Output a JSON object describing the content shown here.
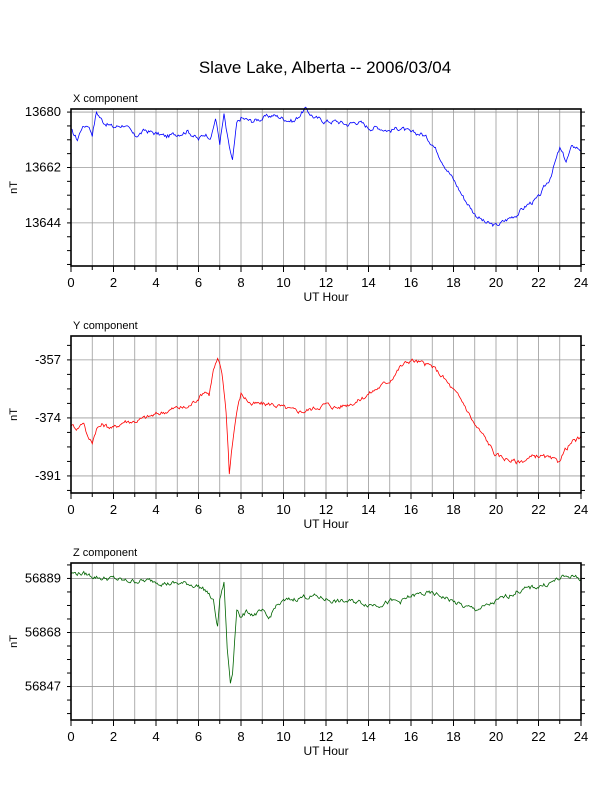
{
  "title": "Slave Lake, Alberta -- 2006/03/04",
  "chart_data": [
    {
      "type": "line",
      "panel_label": "X component",
      "xlabel": "UT Hour",
      "ylabel": "nT",
      "xlim": [
        0,
        24
      ],
      "ylim": [
        13630,
        13681
      ],
      "x_ticks": [
        0,
        2,
        4,
        6,
        8,
        10,
        12,
        14,
        16,
        18,
        20,
        22,
        24
      ],
      "y_ticks": [
        13644,
        13662,
        13680
      ],
      "grid": true,
      "color": "#0000ff",
      "x": [
        0,
        0.3,
        0.5,
        0.8,
        1.0,
        1.2,
        1.5,
        2.0,
        2.5,
        3.0,
        3.5,
        4.0,
        4.5,
        5.0,
        5.5,
        6.0,
        6.3,
        6.6,
        6.8,
        7.0,
        7.2,
        7.4,
        7.6,
        7.8,
        8.0,
        8.5,
        9.0,
        9.5,
        10.0,
        10.5,
        11.0,
        11.5,
        12.0,
        12.5,
        13.0,
        13.5,
        14.0,
        14.5,
        15.0,
        15.5,
        16.0,
        16.5,
        17.0,
        17.5,
        18.0,
        18.5,
        19.0,
        19.5,
        20.0,
        20.5,
        21.0,
        21.5,
        22.0,
        22.5,
        23.0,
        23.3,
        23.6,
        24.0
      ],
      "y": [
        13674,
        13671,
        13675,
        13676,
        13673,
        13680,
        13677,
        13675,
        13676,
        13672,
        13674,
        13673,
        13672,
        13673,
        13674,
        13671,
        13673,
        13672,
        13678,
        13670,
        13679,
        13670,
        13664,
        13676,
        13678,
        13677,
        13678,
        13679,
        13678,
        13677,
        13681,
        13678,
        13677,
        13677,
        13676,
        13677,
        13675,
        13675,
        13674,
        13675,
        13673,
        13673,
        13670,
        13664,
        13658,
        13652,
        13647,
        13644,
        13643,
        13645,
        13647,
        13650,
        13652,
        13658,
        13668,
        13664,
        13669,
        13668
      ]
    },
    {
      "type": "line",
      "panel_label": "Y component",
      "xlabel": "UT Hour",
      "ylabel": "nT",
      "xlim": [
        0,
        24
      ],
      "ylim": [
        -396,
        -350
      ],
      "x_ticks": [
        0,
        2,
        4,
        6,
        8,
        10,
        12,
        14,
        16,
        18,
        20,
        22,
        24
      ],
      "y_ticks": [
        -391,
        -374,
        -357
      ],
      "grid": true,
      "color": "#ff0000",
      "x": [
        0,
        0.3,
        0.6,
        0.8,
        1.0,
        1.2,
        1.5,
        2.0,
        2.5,
        3.0,
        3.5,
        4.0,
        4.5,
        5.0,
        5.5,
        6.0,
        6.3,
        6.5,
        6.7,
        6.9,
        7.1,
        7.3,
        7.45,
        7.6,
        7.8,
        8.0,
        8.5,
        9.0,
        9.5,
        10.0,
        10.5,
        11.0,
        11.5,
        12.0,
        12.5,
        13.0,
        13.5,
        14.0,
        14.5,
        15.0,
        15.5,
        16.0,
        16.5,
        17.0,
        17.5,
        18.0,
        18.5,
        19.0,
        19.5,
        20.0,
        20.5,
        21.0,
        21.5,
        22.0,
        22.5,
        22.9,
        23.3,
        23.6,
        24.0
      ],
      "y": [
        -376,
        -377,
        -375,
        -380,
        -381,
        -377,
        -376,
        -377,
        -375,
        -375,
        -374,
        -373,
        -372,
        -371,
        -371,
        -368,
        -366,
        -367,
        -360,
        -357,
        -361,
        -372,
        -390,
        -381,
        -372,
        -367,
        -370,
        -370,
        -370,
        -371,
        -372,
        -372,
        -371,
        -370,
        -371,
        -370,
        -369,
        -367,
        -365,
        -363,
        -359,
        -357,
        -358,
        -359,
        -362,
        -366,
        -370,
        -376,
        -380,
        -385,
        -386,
        -387,
        -386,
        -385,
        -386,
        -387,
        -383,
        -381,
        -380
      ]
    },
    {
      "type": "line",
      "panel_label": "Z component",
      "xlabel": "UT Hour",
      "ylabel": "nT",
      "xlim": [
        0,
        24
      ],
      "ylim": [
        56834,
        56895
      ],
      "x_ticks": [
        0,
        2,
        4,
        6,
        8,
        10,
        12,
        14,
        16,
        18,
        20,
        22,
        24
      ],
      "y_ticks": [
        56847,
        56868,
        56889
      ],
      "grid": true,
      "color": "#006400",
      "x": [
        0,
        0.5,
        1.0,
        1.5,
        2.0,
        2.5,
        3.0,
        3.5,
        4.0,
        4.5,
        5.0,
        5.5,
        6.0,
        6.4,
        6.7,
        6.9,
        7.0,
        7.2,
        7.35,
        7.5,
        7.6,
        7.8,
        8.0,
        8.3,
        8.6,
        9.0,
        9.3,
        9.6,
        10.0,
        10.5,
        11.0,
        11.5,
        12.0,
        12.5,
        13.0,
        13.5,
        14.0,
        14.5,
        15.0,
        15.5,
        16.0,
        16.5,
        17.0,
        17.5,
        18.0,
        18.5,
        19.0,
        19.5,
        20.0,
        20.5,
        21.0,
        21.5,
        22.0,
        22.5,
        23.0,
        23.5,
        24.0
      ],
      "y": [
        56891,
        56891,
        56890,
        56889,
        56889,
        56888,
        56888,
        56888,
        56888,
        56887,
        56887,
        56887,
        56886,
        56884,
        56880,
        56870,
        56881,
        56887,
        56862,
        56848,
        56852,
        56878,
        56874,
        56876,
        56875,
        56876,
        56873,
        56878,
        56880,
        56881,
        56882,
        56882,
        56881,
        56880,
        56880,
        56880,
        56879,
        56879,
        56880,
        56880,
        56882,
        56883,
        56883,
        56882,
        56880,
        56878,
        56877,
        56878,
        56880,
        56882,
        56884,
        56885,
        56886,
        56887,
        56889,
        56890,
        56889
      ]
    }
  ]
}
